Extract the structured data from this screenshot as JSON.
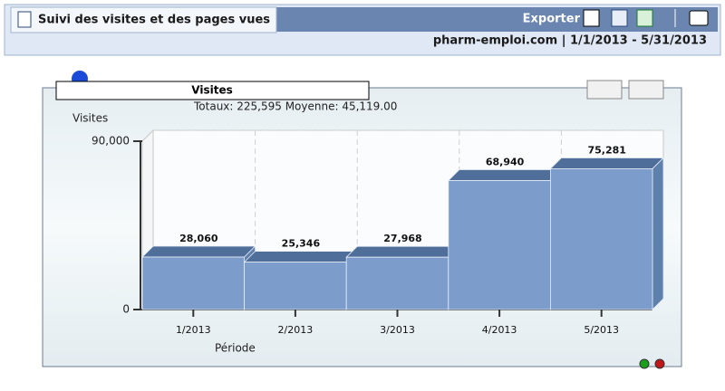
{
  "header": {
    "title": "Suivi des visites et des pages vues",
    "export": "Exporter",
    "context": "pharm-emploi.com  |  1/1/2013 - 5/31/2013"
  },
  "chart_data": {
    "type": "bar",
    "title": "Visites",
    "subtitle": "Totaux: 225,595   Moyenne: 45,119.00",
    "y_label": "Visites",
    "x_label": "Période",
    "categories": [
      "1/2013",
      "2/2013",
      "3/2013",
      "4/2013",
      "5/2013"
    ],
    "values": [
      28060,
      25346,
      27968,
      68940,
      75281
    ],
    "value_labels": [
      "28,060",
      "25,346",
      "27,968",
      "68,940",
      "75,281"
    ],
    "color": "#7c9ccb",
    "ylim": [
      0,
      90000
    ],
    "yticks": [
      0,
      {
        "value": 90000,
        "label": "90,000"
      }
    ],
    "grid": true
  }
}
